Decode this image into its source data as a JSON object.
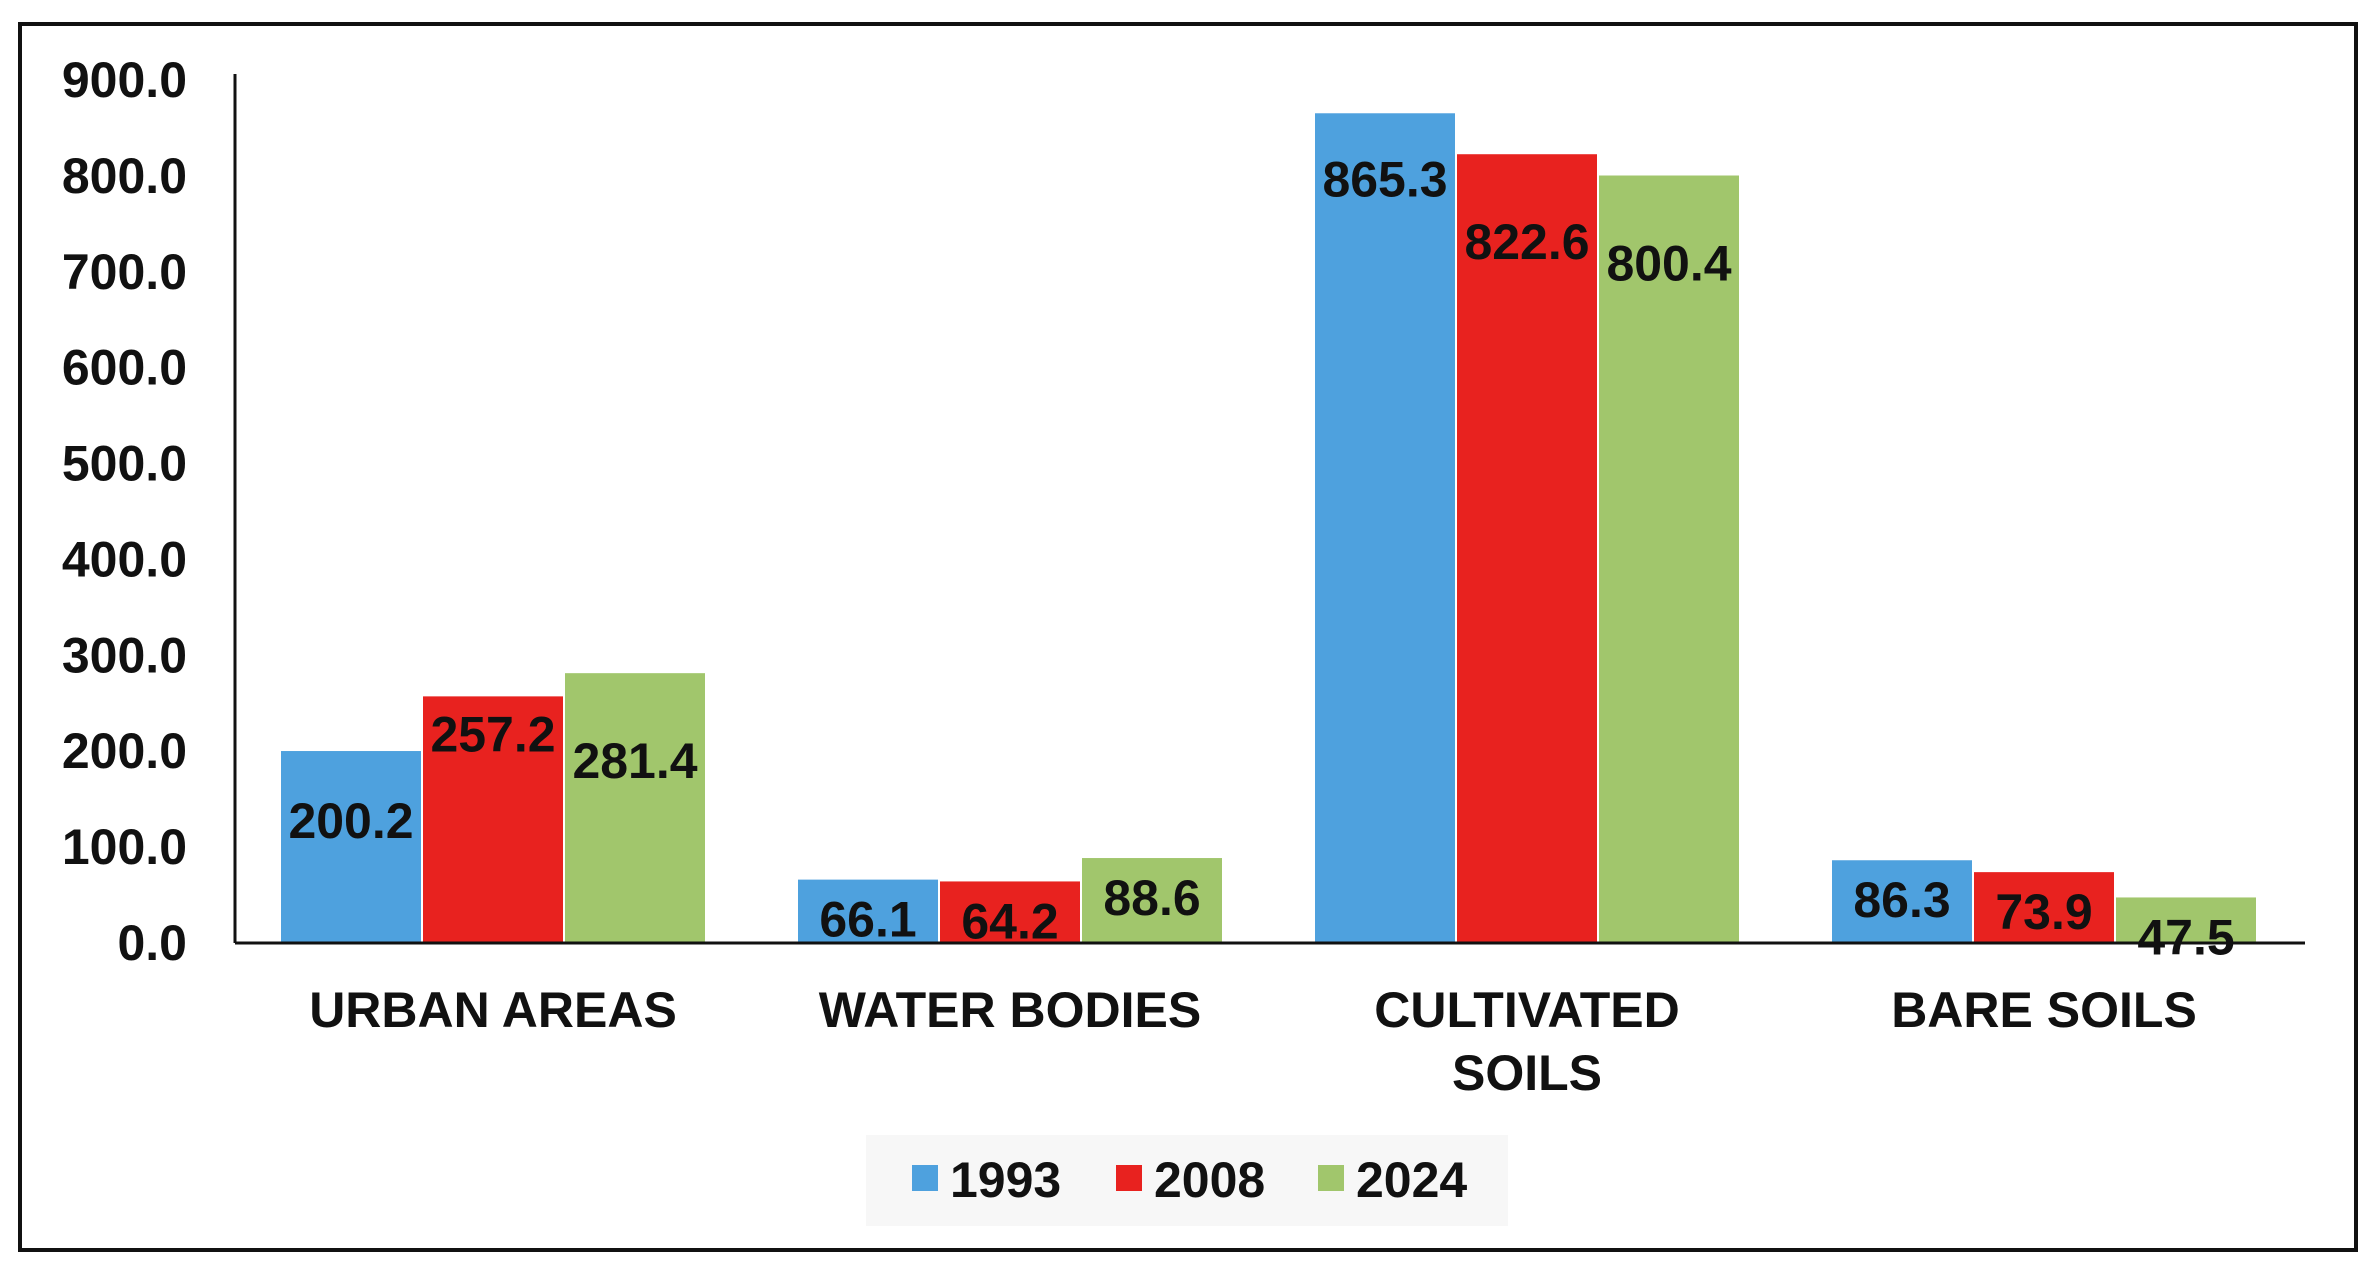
{
  "chart_data": {
    "type": "bar",
    "title": "",
    "xlabel": "",
    "ylabel": "",
    "ylim": [
      0,
      900
    ],
    "yticks": [
      "0.0",
      "100.0",
      "200.0",
      "300.0",
      "400.0",
      "500.0",
      "600.0",
      "700.0",
      "800.0",
      "900.0"
    ],
    "categories": [
      [
        "URBAN AREAS"
      ],
      [
        "WATER BODIES"
      ],
      [
        "CULTIVATED",
        "SOILS"
      ],
      [
        "BARE SOILS"
      ]
    ],
    "series": [
      {
        "name": "1993",
        "color": "#4ea1de",
        "values": [
          200.2,
          66.1,
          865.3,
          86.3
        ],
        "labels": [
          "200.2",
          "66.1",
          "865.3",
          "86.3"
        ]
      },
      {
        "name": "2008",
        "color": "#e8221f",
        "values": [
          257.2,
          64.2,
          822.6,
          73.9
        ],
        "labels": [
          "257.2",
          "64.2",
          "822.6",
          "73.9"
        ]
      },
      {
        "name": "2024",
        "color": "#a1c66c",
        "values": [
          281.4,
          88.6,
          800.4,
          47.5
        ],
        "labels": [
          "281.4",
          "88.6",
          "800.4",
          "47.5"
        ]
      }
    ],
    "legend_position": "bottom",
    "grid": false
  }
}
